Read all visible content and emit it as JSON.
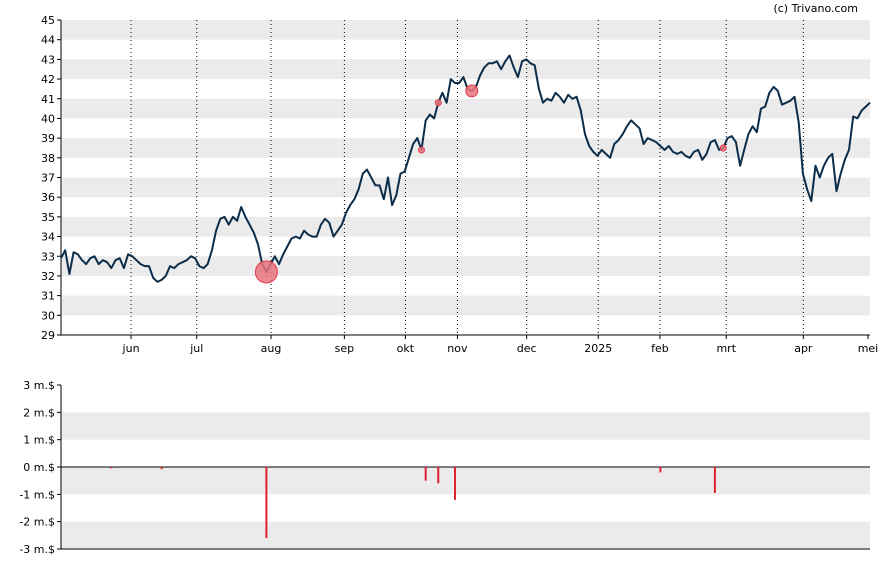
{
  "credit": "(c) Trivano.com",
  "colors": {
    "price_line": "#0b2d4a",
    "band": "#ebebeb",
    "marker_fill": "#e8737c",
    "marker_stroke": "#e23b4a",
    "volume_bar": "#e0202e",
    "grid": "#000000"
  },
  "chart_data": [
    {
      "type": "line",
      "ylim": [
        29,
        45
      ],
      "y_ticks": [
        29,
        30,
        31,
        32,
        33,
        34,
        35,
        36,
        37,
        38,
        39,
        40,
        41,
        42,
        43,
        44,
        45
      ],
      "x_ticks": [
        "jun",
        "jul",
        "aug",
        "sep",
        "okt",
        "nov",
        "dec",
        "2025",
        "feb",
        "mrt",
        "apr",
        "mei"
      ],
      "grid": "vertical dotted at month starts, alternating horizontal bands",
      "series": [
        {
          "values": [
            32.9,
            33.3,
            32.1,
            33.2,
            33.1,
            32.8,
            32.6,
            32.9,
            33.0,
            32.6,
            32.8,
            32.7,
            32.4,
            32.8,
            32.9,
            32.4,
            33.1,
            33.0,
            32.8,
            32.6,
            32.5,
            32.5,
            31.9,
            31.7,
            31.8,
            32.0,
            32.5,
            32.4,
            32.6,
            32.7,
            32.8,
            33.0,
            32.9,
            32.5,
            32.4,
            32.6,
            33.3,
            34.3,
            34.9,
            35.0,
            34.6,
            35.0,
            34.8,
            35.5,
            35.0,
            34.6,
            34.2,
            33.6,
            32.6,
            32.2,
            32.6,
            33.0,
            32.6,
            33.1,
            33.5,
            33.9,
            34.0,
            33.9,
            34.3,
            34.1,
            34.0,
            34.0,
            34.6,
            34.9,
            34.7,
            34.0,
            34.3,
            34.6,
            35.2,
            35.6,
            35.9,
            36.4,
            37.2,
            37.4,
            37.0,
            36.6,
            36.6,
            35.9,
            37.0,
            35.6,
            36.1,
            37.2,
            37.3,
            38.0,
            38.7,
            39.0,
            38.4,
            39.9,
            40.2,
            40.0,
            40.8,
            41.3,
            40.8,
            42.0,
            41.8,
            41.8,
            42.1,
            41.5,
            41.4,
            41.6,
            42.2,
            42.6,
            42.8,
            42.8,
            42.9,
            42.5,
            42.9,
            43.2,
            42.6,
            42.1,
            42.9,
            43.0,
            42.8,
            42.7,
            41.5,
            40.8,
            41.0,
            40.9,
            41.3,
            41.1,
            40.8,
            41.2,
            41.0,
            41.1,
            40.4,
            39.2,
            38.6,
            38.3,
            38.1,
            38.4,
            38.2,
            38.0,
            38.7,
            38.9,
            39.2,
            39.6,
            39.9,
            39.7,
            39.5,
            38.7,
            39.0,
            38.9,
            38.8,
            38.6,
            38.4,
            38.6,
            38.3,
            38.2,
            38.3,
            38.1,
            38.0,
            38.3,
            38.4,
            37.9,
            38.2,
            38.8,
            38.9,
            38.4,
            38.5,
            39.0,
            39.1,
            38.8,
            37.6,
            38.4,
            39.2,
            39.6,
            39.3,
            40.5,
            40.6,
            41.3,
            41.6,
            41.4,
            40.7,
            40.8,
            40.9,
            41.1,
            39.8,
            37.2,
            36.4,
            35.8,
            37.6,
            37.0,
            37.6,
            38.0,
            38.2,
            36.3,
            37.2,
            37.9,
            38.4,
            40.1,
            40.0,
            40.4,
            40.6,
            40.8
          ]
        }
      ],
      "markers": [
        {
          "label": "aug",
          "index": 49,
          "size": "large"
        },
        {
          "label": "nov",
          "index": 86,
          "size": "small"
        },
        {
          "label": "nov",
          "index": 90,
          "size": "small"
        },
        {
          "label": "nov",
          "index": 98,
          "size": "medium"
        },
        {
          "label": "mrt",
          "index": 158,
          "size": "small"
        }
      ]
    },
    {
      "type": "bar",
      "ylim": [
        -3,
        3
      ],
      "y_ticks": [
        "3 m.$",
        "2 m.$",
        "1 m.$",
        "0 m.$",
        "-1 m.$",
        "-2 m.$",
        "-3 m.$"
      ],
      "y_tick_values": [
        3,
        2,
        1,
        0,
        -1,
        -2,
        -3
      ],
      "unit": "m.$",
      "bars": [
        {
          "index": 12,
          "value": -0.05
        },
        {
          "index": 24,
          "value": -0.08
        },
        {
          "index": 49,
          "value": -2.6
        },
        {
          "index": 87,
          "value": -0.5
        },
        {
          "index": 90,
          "value": -0.6
        },
        {
          "index": 94,
          "value": -1.2
        },
        {
          "index": 143,
          "value": -0.2
        },
        {
          "index": 156,
          "value": -0.95
        }
      ]
    }
  ]
}
